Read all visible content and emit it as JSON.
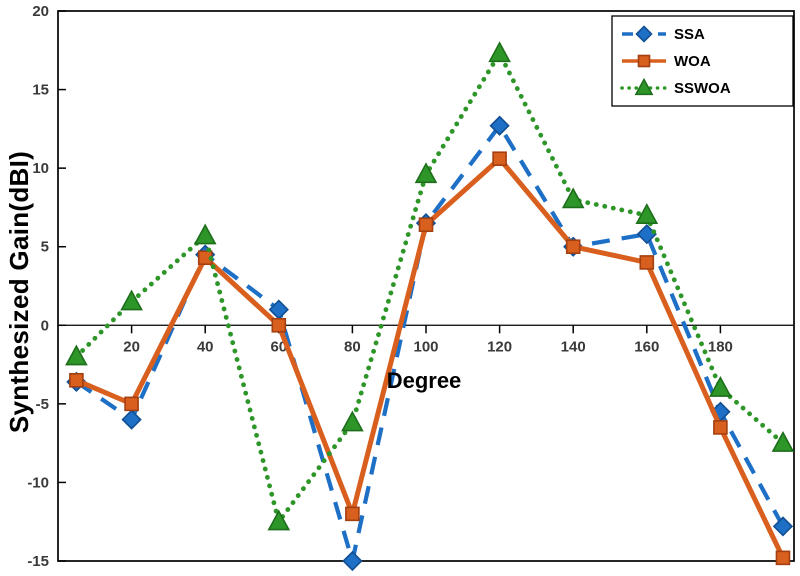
{
  "chart_data": {
    "type": "line",
    "title": "",
    "xlabel": "Degree",
    "ylabel": "Synthesized Gain(dBI)",
    "xlim": [
      0,
      200
    ],
    "ylim": [
      -15,
      20
    ],
    "xticks": [
      20,
      40,
      60,
      80,
      100,
      120,
      140,
      160,
      180
    ],
    "yticks": [
      -15,
      -10,
      -5,
      0,
      5,
      10,
      15,
      20
    ],
    "grid": false,
    "zero_line": true,
    "legend_position": "top-right",
    "x": [
      5,
      20,
      40,
      60,
      80,
      100,
      120,
      140,
      160,
      180,
      197
    ],
    "series": [
      {
        "name": "SSA",
        "color": "#1E6FC6",
        "edge_color": "#114f92",
        "line_style": "dashed",
        "marker": "diamond",
        "values": [
          -3.6,
          -6.0,
          4.5,
          1.0,
          -15.0,
          6.5,
          12.7,
          5.0,
          5.8,
          -5.5,
          -12.8
        ]
      },
      {
        "name": "WOA",
        "color": "#D95F1E",
        "edge_color": "#a33f10",
        "line_style": "solid",
        "marker": "square",
        "values": [
          -3.5,
          -5.0,
          4.3,
          0.0,
          -12.0,
          6.4,
          10.6,
          5.0,
          4.0,
          -6.5,
          -14.8
        ]
      },
      {
        "name": "SSWOA",
        "color": "#2E9629",
        "edge_color": "#1d6e1a",
        "line_style": "dotted",
        "marker": "triangle",
        "values": [
          -2.0,
          1.5,
          5.7,
          -12.5,
          -6.2,
          9.6,
          17.3,
          8.0,
          7.0,
          -4.0,
          -7.5
        ]
      }
    ],
    "axis_color": "#000000",
    "tick_text_color": "#3a3a3a",
    "background": "#ffffff"
  }
}
